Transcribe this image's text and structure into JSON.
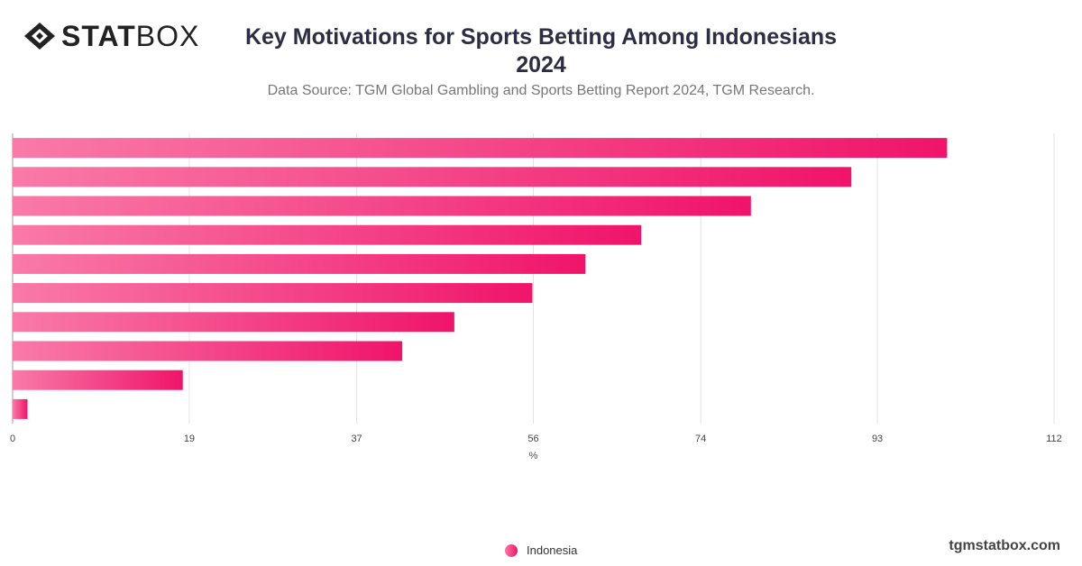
{
  "brand": {
    "logo_bold": "STAT",
    "logo_light": "BOX",
    "site": "tgmstatbox.com"
  },
  "header": {
    "title_line1": "Key Motivations for Sports Betting Among Indonesians",
    "title_line2": "2024",
    "subtitle": "Data Source: TGM Global Gambling and Sports Betting Report 2024, TGM Research."
  },
  "chart_data": {
    "type": "bar",
    "orientation": "horizontal",
    "categories": [
      "",
      "",
      "",
      "",
      "",
      "",
      "",
      "",
      "",
      ""
    ],
    "series": [
      {
        "name": "Indonesia",
        "values": [
          100.5,
          90.2,
          79.4,
          67.6,
          61.6,
          55.9,
          47.5,
          41.9,
          18.3,
          1.6
        ]
      }
    ],
    "xlabel": "%",
    "ylabel": "",
    "xlim": [
      0,
      112
    ],
    "xticks": [
      "0",
      "19",
      "37",
      "56",
      "74",
      "93",
      "112"
    ],
    "grid": true,
    "legend": "bottom-center",
    "colors": {
      "bar_start": "#f97aa8",
      "bar_end": "#f0146a"
    }
  }
}
